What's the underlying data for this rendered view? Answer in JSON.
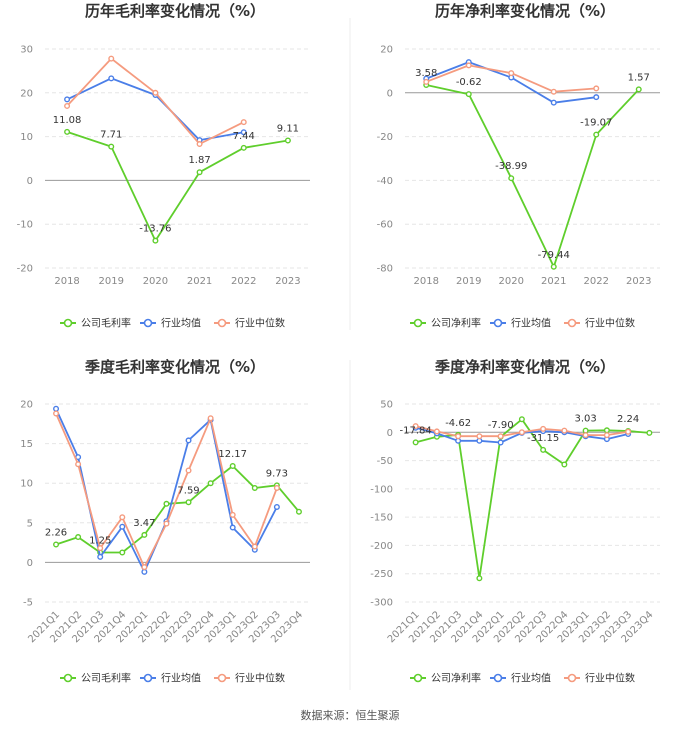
{
  "source": "数据来源：恒生聚源",
  "colors": {
    "company": "#5fce2c",
    "avg": "#4a7ee8",
    "median": "#f59b7f"
  },
  "chart_data": [
    {
      "type": "line",
      "title": "历年毛利率变化情况（%）",
      "x": [
        "2018",
        "2019",
        "2020",
        "2021",
        "2022",
        "2023"
      ],
      "ylim": [
        -20,
        30
      ],
      "yticks": [
        -20,
        -10,
        0,
        10,
        20,
        30
      ],
      "grid": true,
      "legend_position": "bottom",
      "series": [
        {
          "name": "公司毛利率",
          "key": "company",
          "values": [
            11.08,
            7.71,
            -13.76,
            1.87,
            7.44,
            9.11
          ]
        },
        {
          "name": "行业均值",
          "key": "avg",
          "values": [
            18.5,
            23.3,
            19.5,
            9.2,
            11.0,
            null
          ]
        },
        {
          "name": "行业中位数",
          "key": "median",
          "values": [
            17.0,
            27.8,
            20.0,
            8.3,
            13.3,
            null
          ]
        }
      ],
      "labels": [
        {
          "i": 0,
          "text": "11.08",
          "pos": "above"
        },
        {
          "i": 1,
          "text": "7.71",
          "pos": "above"
        },
        {
          "i": 2,
          "text": "-13.76",
          "pos": "above"
        },
        {
          "i": 3,
          "text": "1.87",
          "pos": "above"
        },
        {
          "i": 4,
          "text": "7.44",
          "pos": "above"
        },
        {
          "i": 5,
          "text": "9.11",
          "pos": "above"
        }
      ]
    },
    {
      "type": "line",
      "title": "历年净利率变化情况（%）",
      "x": [
        "2018",
        "2019",
        "2020",
        "2021",
        "2022",
        "2023"
      ],
      "ylim": [
        -80,
        20
      ],
      "yticks": [
        -80,
        -60,
        -40,
        -20,
        0,
        20
      ],
      "grid": true,
      "legend_position": "bottom",
      "series": [
        {
          "name": "公司净利率",
          "key": "company",
          "values": [
            3.58,
            -0.62,
            -38.99,
            -79.44,
            -19.07,
            1.57
          ]
        },
        {
          "name": "行业均值",
          "key": "avg",
          "values": [
            6.5,
            14.0,
            7.0,
            -4.5,
            -2.0,
            null
          ]
        },
        {
          "name": "行业中位数",
          "key": "median",
          "values": [
            5.0,
            12.5,
            9.0,
            0.5,
            2.0,
            null
          ]
        }
      ],
      "labels": [
        {
          "i": 0,
          "text": "3.58",
          "pos": "above"
        },
        {
          "i": 1,
          "text": "-0.62",
          "pos": "above"
        },
        {
          "i": 2,
          "text": "-38.99",
          "pos": "above"
        },
        {
          "i": 3,
          "text": "-79.44",
          "pos": "above"
        },
        {
          "i": 4,
          "text": "-19.07",
          "pos": "above"
        },
        {
          "i": 5,
          "text": "1.57",
          "pos": "above"
        }
      ]
    },
    {
      "type": "line",
      "title": "季度毛利率变化情况（%）",
      "x": [
        "2021Q1",
        "2021Q2",
        "2021Q3",
        "2021Q4",
        "2022Q1",
        "2022Q2",
        "2022Q3",
        "2022Q4",
        "2023Q1",
        "2023Q2",
        "2023Q3",
        "2023Q4"
      ],
      "ylim": [
        -5,
        20
      ],
      "yticks": [
        -5,
        0,
        5,
        10,
        15,
        20
      ],
      "grid": true,
      "legend_position": "bottom",
      "series": [
        {
          "name": "公司毛利率",
          "key": "company",
          "values": [
            2.26,
            3.2,
            1.25,
            1.25,
            3.47,
            7.4,
            7.59,
            10.0,
            12.17,
            9.4,
            9.73,
            6.4
          ]
        },
        {
          "name": "行业均值",
          "key": "avg",
          "values": [
            19.4,
            13.3,
            0.7,
            4.5,
            -1.2,
            5.2,
            15.4,
            18.0,
            4.4,
            1.6,
            7.0,
            null
          ]
        },
        {
          "name": "行业中位数",
          "key": "median",
          "values": [
            18.8,
            12.4,
            1.8,
            5.7,
            -0.6,
            4.9,
            11.6,
            18.2,
            6.0,
            2.0,
            9.4,
            null
          ]
        }
      ],
      "labels": [
        {
          "i": 0,
          "text": "2.26",
          "pos": "above"
        },
        {
          "i": 2,
          "text": "1.25",
          "pos": "above"
        },
        {
          "i": 4,
          "text": "3.47",
          "pos": "above"
        },
        {
          "i": 6,
          "text": "7.59",
          "pos": "above"
        },
        {
          "i": 8,
          "text": "12.17",
          "pos": "above"
        },
        {
          "i": 10,
          "text": "9.73",
          "pos": "above"
        }
      ]
    },
    {
      "type": "line",
      "title": "季度净利率变化情况（%）",
      "x": [
        "2021Q1",
        "2021Q2",
        "2021Q3",
        "2021Q4",
        "2022Q1",
        "2022Q2",
        "2022Q3",
        "2022Q4",
        "2023Q1",
        "2023Q2",
        "2023Q3",
        "2023Q4"
      ],
      "ylim": [
        -300,
        50
      ],
      "yticks": [
        -300,
        -250,
        -200,
        -150,
        -100,
        -50,
        0,
        50
      ],
      "grid": true,
      "legend_position": "bottom",
      "series": [
        {
          "name": "公司净利率",
          "key": "company",
          "values": [
            -17.84,
            -8.0,
            -4.62,
            -258.0,
            -7.9,
            23.0,
            -31.15,
            -57.0,
            3.03,
            3.5,
            2.24,
            -1.0
          ]
        },
        {
          "name": "行业均值",
          "key": "avg",
          "values": [
            8.0,
            -2.0,
            -15.0,
            -15.0,
            -18.0,
            -1.0,
            2.0,
            0.0,
            -7.0,
            -12.0,
            -3.0,
            null
          ]
        },
        {
          "name": "行业中位数",
          "key": "median",
          "values": [
            11.0,
            1.5,
            -7.0,
            -7.0,
            -7.0,
            0.0,
            6.0,
            3.0,
            -5.0,
            -5.0,
            1.0,
            null
          ]
        }
      ],
      "labels": [
        {
          "i": 0,
          "text": "-17.84",
          "pos": "above"
        },
        {
          "i": 2,
          "text": "-4.62",
          "pos": "above"
        },
        {
          "i": 4,
          "text": "-7.90",
          "pos": "above"
        },
        {
          "i": 6,
          "text": "-31.15",
          "pos": "above"
        },
        {
          "i": 8,
          "text": "3.03",
          "pos": "above"
        },
        {
          "i": 10,
          "text": "2.24",
          "pos": "above"
        }
      ]
    }
  ]
}
